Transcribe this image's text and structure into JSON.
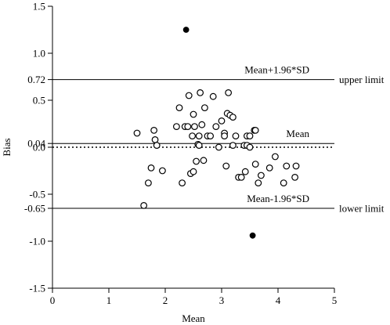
{
  "chart_data": {
    "type": "scatter",
    "title": "",
    "xlabel": "Mean",
    "ylabel": "Bias",
    "xlim": [
      0,
      5
    ],
    "ylim": [
      -1.5,
      1.5
    ],
    "x_ticks": [
      0,
      1,
      2,
      3,
      4,
      5
    ],
    "y_ticks": [
      {
        "value": 1.5,
        "label": "1.5"
      },
      {
        "value": 1.0,
        "label": "1.0"
      },
      {
        "value": 0.72,
        "label": "0.72"
      },
      {
        "value": 0.5,
        "label": "0.5"
      },
      {
        "value": 0.04,
        "label": "0.04"
      },
      {
        "value": 0.0,
        "label": "0.0"
      },
      {
        "value": -0.5,
        "label": "-0.5"
      },
      {
        "value": -0.65,
        "label": "-0.65"
      },
      {
        "value": -1.0,
        "label": "-1.0"
      },
      {
        "value": -1.5,
        "label": "-1.5"
      }
    ],
    "reference_lines": [
      {
        "value": 0.72,
        "style": "solid",
        "label": "Mean+1.96*SD",
        "side_label": "upper limit"
      },
      {
        "value": 0.04,
        "style": "solid",
        "label": "Mean",
        "side_label": ""
      },
      {
        "value": 0.0,
        "style": "dotted",
        "label": "",
        "side_label": ""
      },
      {
        "value": -0.65,
        "style": "solid",
        "label": "Mean-1.96*SD",
        "side_label": "lower limit"
      }
    ],
    "series": [
      {
        "marker": "open-circle",
        "points": [
          [
            1.5,
            0.15
          ],
          [
            1.62,
            -0.62
          ],
          [
            1.7,
            -0.38
          ],
          [
            1.75,
            -0.22
          ],
          [
            1.8,
            0.18
          ],
          [
            1.82,
            0.08
          ],
          [
            1.85,
            0.02
          ],
          [
            1.95,
            -0.25
          ],
          [
            2.2,
            0.22
          ],
          [
            2.25,
            0.42
          ],
          [
            2.3,
            -0.38
          ],
          [
            2.35,
            0.22
          ],
          [
            2.4,
            0.22
          ],
          [
            2.42,
            0.55
          ],
          [
            2.45,
            -0.28
          ],
          [
            2.48,
            0.12
          ],
          [
            2.5,
            0.35
          ],
          [
            2.5,
            -0.26
          ],
          [
            2.52,
            0.22
          ],
          [
            2.55,
            -0.15
          ],
          [
            2.58,
            0.03
          ],
          [
            2.6,
            0.12
          ],
          [
            2.6,
            0.02
          ],
          [
            2.62,
            0.58
          ],
          [
            2.65,
            0.24
          ],
          [
            2.68,
            -0.14
          ],
          [
            2.7,
            0.42
          ],
          [
            2.75,
            0.12
          ],
          [
            2.8,
            0.12
          ],
          [
            2.85,
            0.54
          ],
          [
            2.9,
            0.22
          ],
          [
            2.95,
            0.0
          ],
          [
            3.0,
            0.28
          ],
          [
            3.05,
            0.15
          ],
          [
            3.05,
            0.12
          ],
          [
            3.08,
            -0.2
          ],
          [
            3.1,
            0.36
          ],
          [
            3.12,
            0.58
          ],
          [
            3.15,
            0.34
          ],
          [
            3.2,
            0.32
          ],
          [
            3.2,
            0.02
          ],
          [
            3.25,
            0.12
          ],
          [
            3.3,
            -0.32
          ],
          [
            3.35,
            -0.32
          ],
          [
            3.4,
            0.02
          ],
          [
            3.42,
            -0.26
          ],
          [
            3.45,
            0.02
          ],
          [
            3.45,
            0.12
          ],
          [
            3.5,
            0.0
          ],
          [
            3.5,
            0.12
          ],
          [
            3.58,
            0.18
          ],
          [
            3.6,
            0.18
          ],
          [
            3.6,
            -0.18
          ],
          [
            3.65,
            -0.38
          ],
          [
            3.7,
            -0.3
          ],
          [
            3.85,
            -0.22
          ],
          [
            3.95,
            -0.1
          ],
          [
            4.1,
            -0.38
          ],
          [
            4.15,
            -0.2
          ],
          [
            4.3,
            -0.32
          ],
          [
            4.32,
            -0.2
          ]
        ]
      },
      {
        "marker": "filled-circle",
        "points": [
          [
            2.37,
            1.25
          ],
          [
            3.55,
            -0.94
          ]
        ]
      }
    ]
  }
}
